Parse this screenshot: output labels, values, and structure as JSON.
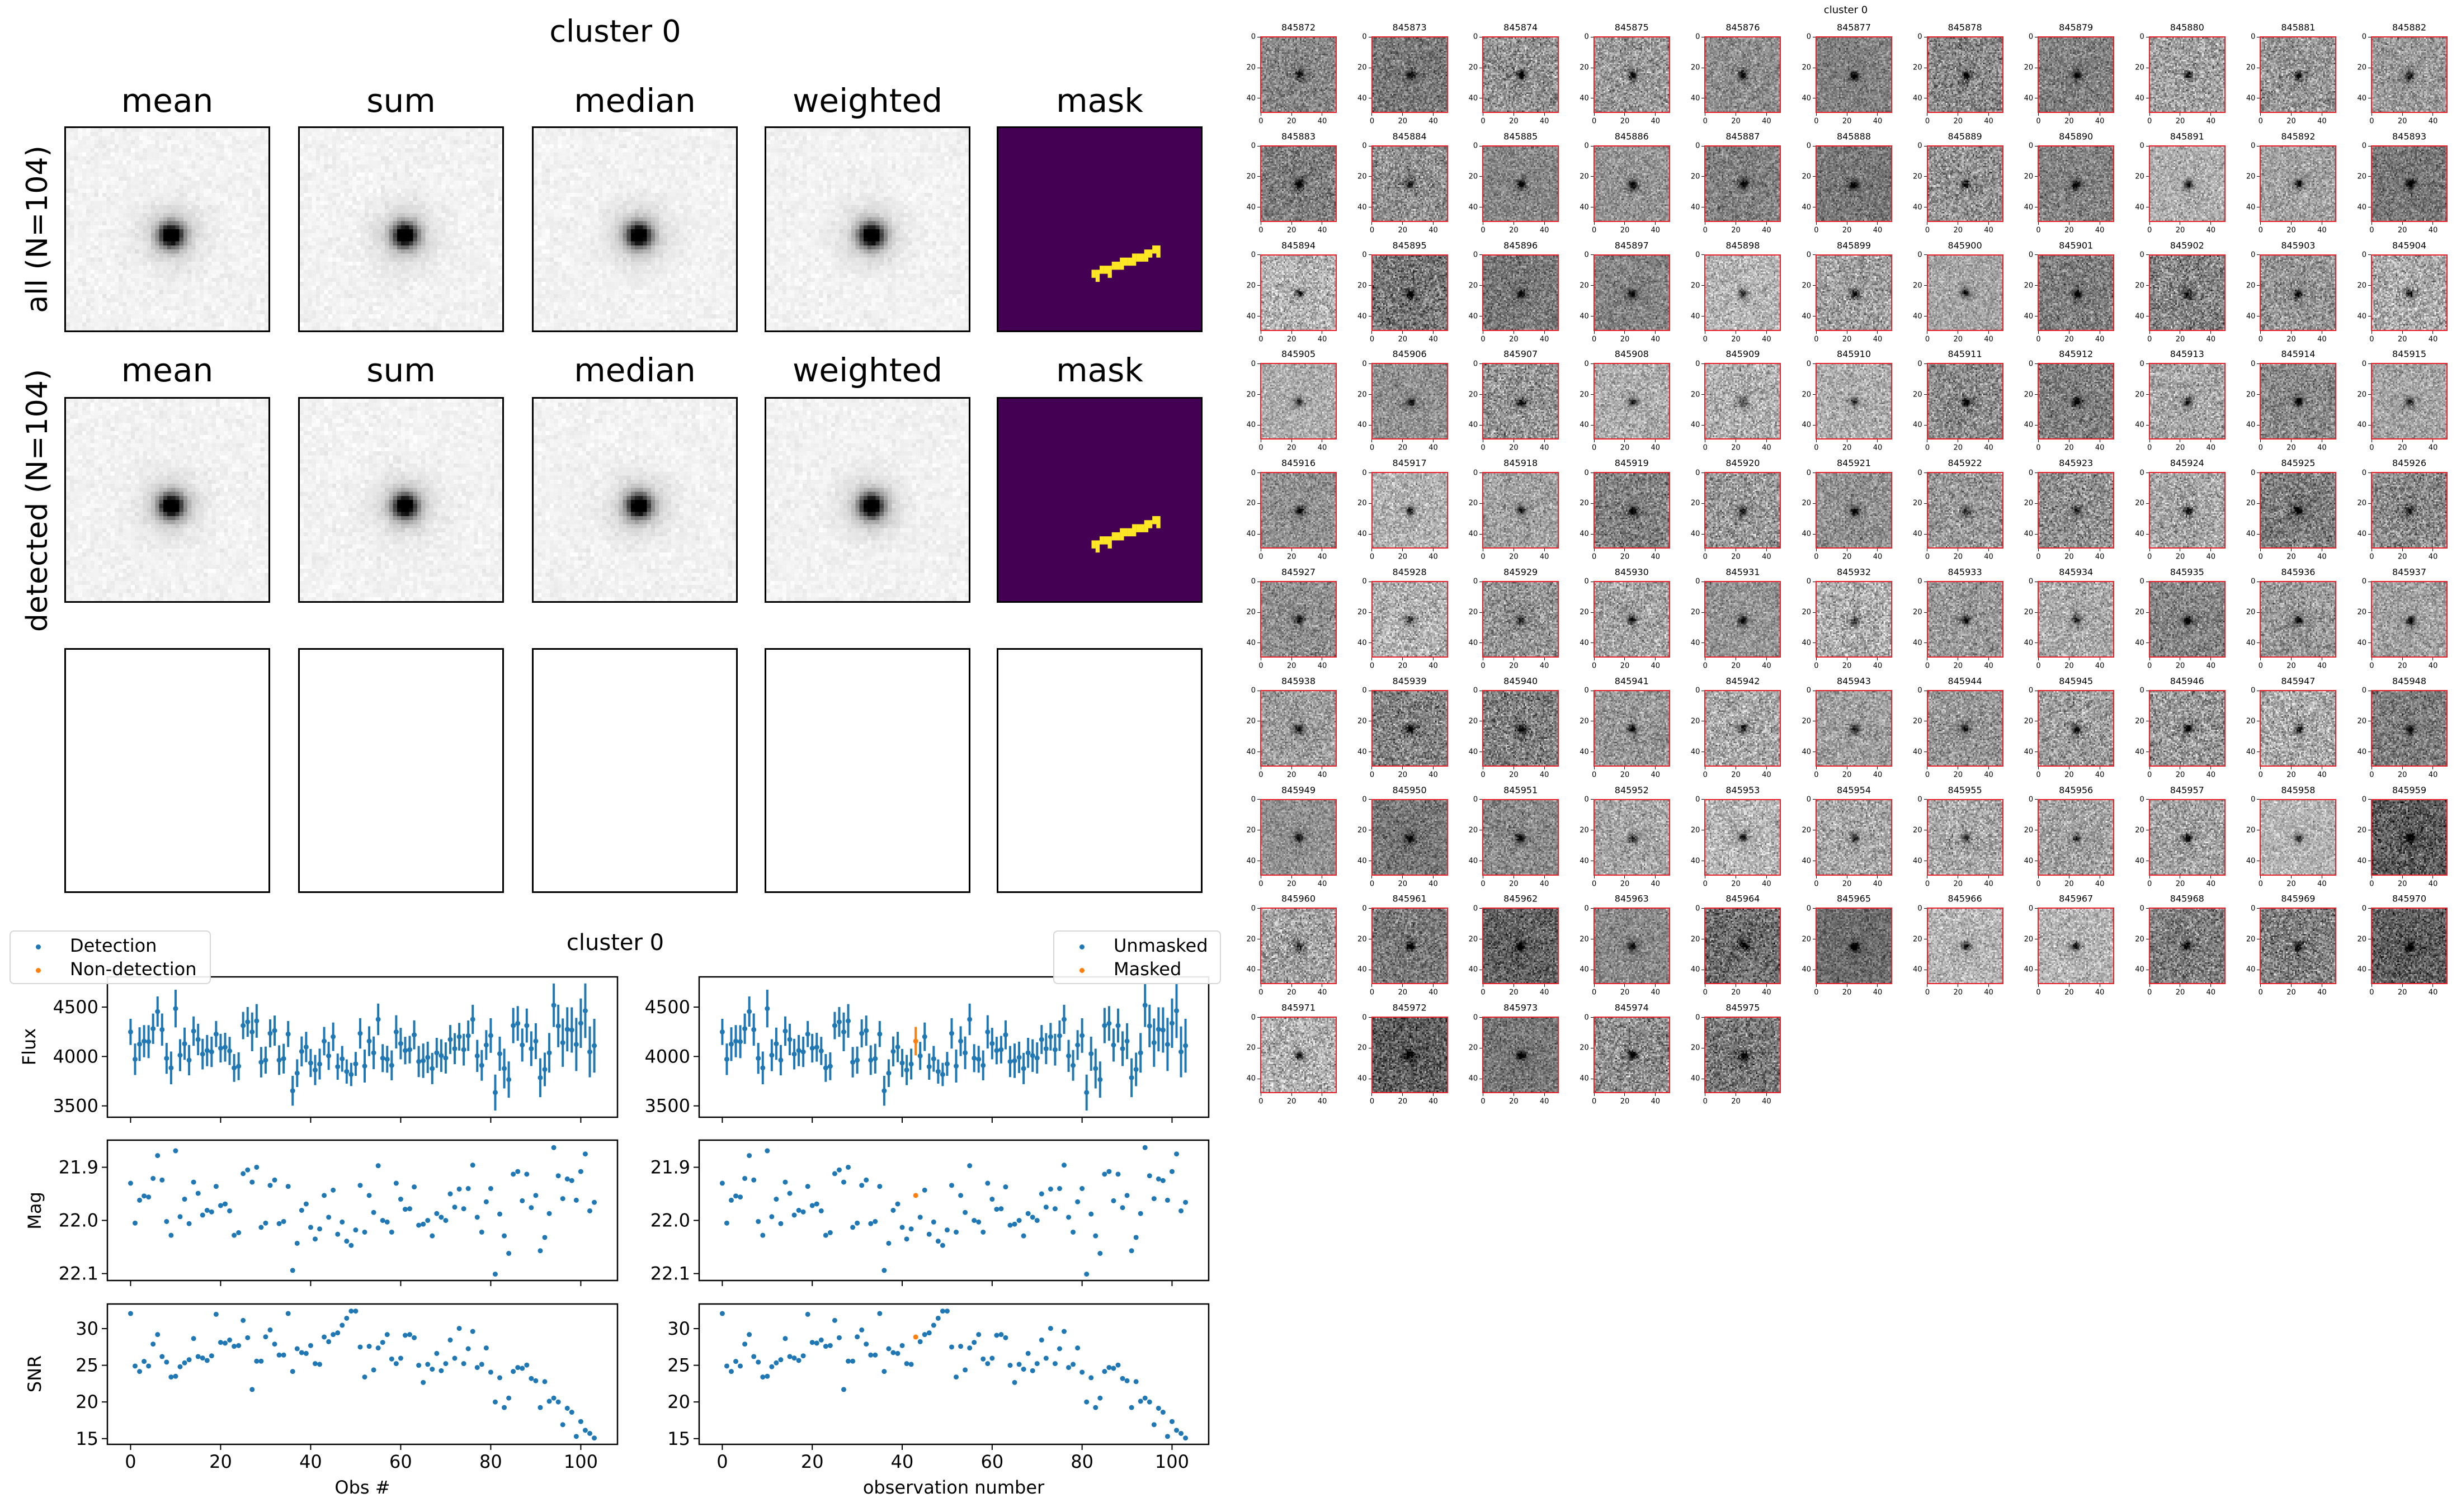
{
  "stacks": {
    "title": "cluster 0",
    "columns": [
      "mean",
      "sum",
      "median",
      "weighted",
      "mask"
    ],
    "rows": [
      {
        "label": "all (N=104)",
        "titles": [
          "mean",
          "sum",
          "median",
          "weighted",
          "mask"
        ],
        "content": "images"
      },
      {
        "label": "detected (N=104)",
        "titles": [
          "mean",
          "sum",
          "median",
          "weighted",
          "mask"
        ],
        "content": "images"
      },
      {
        "label": "",
        "titles": [],
        "content": "empty"
      }
    ],
    "colors": {
      "mask_background": "#440154",
      "mask_pixels": "#fde725"
    },
    "colormap": "gray_r"
  },
  "thumbnails": {
    "title": "cluster 0",
    "ids": [
      845872,
      845873,
      845874,
      845875,
      845876,
      845877,
      845878,
      845879,
      845880,
      845881,
      845882,
      845883,
      845884,
      845885,
      845886,
      845887,
      845888,
      845889,
      845890,
      845891,
      845892,
      845893,
      845894,
      845895,
      845896,
      845897,
      845898,
      845899,
      845900,
      845901,
      845902,
      845903,
      845904,
      845905,
      845906,
      845907,
      845908,
      845909,
      845910,
      845911,
      845912,
      845913,
      845914,
      845915,
      845916,
      845917,
      845918,
      845919,
      845920,
      845921,
      845922,
      845923,
      845924,
      845925,
      845926,
      845927,
      845928,
      845929,
      845930,
      845931,
      845932,
      845933,
      845934,
      845935,
      845936,
      845937,
      845938,
      845939,
      845940,
      845941,
      845942,
      845943,
      845944,
      845945,
      845946,
      845947,
      845948,
      845949,
      845950,
      845951,
      845952,
      845953,
      845954,
      845955,
      845956,
      845957,
      845958,
      845959,
      845960,
      845961,
      845962,
      845963,
      845964,
      845965,
      845966,
      845967,
      845968,
      845969,
      845970,
      845971,
      845972,
      845973,
      845974,
      845975
    ],
    "ticks": [
      "0",
      "20",
      "40"
    ],
    "border_color": "#e8202a",
    "colormap": "gray_r"
  },
  "chart_data": {
    "type": "scatter",
    "title": "cluster 0",
    "x": [
      0,
      1,
      2,
      3,
      4,
      5,
      6,
      7,
      8,
      9,
      10,
      11,
      12,
      13,
      14,
      15,
      16,
      17,
      18,
      19,
      20,
      21,
      22,
      23,
      24,
      25,
      26,
      27,
      28,
      29,
      30,
      31,
      32,
      33,
      34,
      35,
      36,
      37,
      38,
      39,
      40,
      41,
      42,
      43,
      44,
      45,
      46,
      47,
      48,
      49,
      50,
      51,
      52,
      53,
      54,
      55,
      56,
      57,
      58,
      59,
      60,
      61,
      62,
      63,
      64,
      65,
      66,
      67,
      68,
      69,
      70,
      71,
      72,
      73,
      74,
      75,
      76,
      77,
      78,
      79,
      80,
      81,
      82,
      83,
      84,
      85,
      86,
      87,
      88,
      89,
      90,
      91,
      92,
      93,
      94,
      95,
      96,
      97,
      98,
      99,
      100,
      101,
      102,
      103
    ],
    "flux": [
      4249,
      3972,
      4125,
      4155,
      4150,
      4281,
      4455,
      4272,
      3981,
      3884,
      4485,
      4013,
      4129,
      3963,
      4257,
      4172,
      4024,
      4060,
      4047,
      4227,
      4084,
      4094,
      4056,
      3884,
      3901,
      4313,
      4350,
      4249,
      4360,
      3942,
      3963,
      4234,
      4262,
      3963,
      3978,
      4227,
      3653,
      3831,
      4051,
      4096,
      3934,
      3863,
      3923,
      4155,
      4006,
      4200,
      3897,
      3976,
      3848,
      3818,
      3925,
      4234,
      3903,
      4155,
      4037,
      4376,
      3983,
      3972,
      3910,
      4249,
      4131,
      4060,
      4069,
      4219,
      3949,
      3957,
      3991,
      3878,
      4037,
      4009,
      3985,
      4172,
      4079,
      4200,
      4069,
      4210,
      4376,
      4006,
      3910,
      4116,
      4212,
      3635,
      4028,
      3878,
      3766,
      4313,
      4335,
      4116,
      4313,
      4079,
      4155,
      3785,
      3869,
      4037,
      4519,
      4309,
      4140,
      4275,
      4268,
      4122,
      4337,
      4463,
      4047,
      4109
    ],
    "mag": [
      21.93,
      22.005,
      21.962,
      21.954,
      21.956,
      21.921,
      21.878,
      21.924,
      22.002,
      22.028,
      21.869,
      21.993,
      21.96,
      22.006,
      21.928,
      21.949,
      21.99,
      21.981,
      21.984,
      21.936,
      21.972,
      21.969,
      21.982,
      22.028,
      22.023,
      21.912,
      21.905,
      21.928,
      21.9,
      22.013,
      22.005,
      21.934,
      21.924,
      22.006,
      22.002,
      21.936,
      22.094,
      22.043,
      21.981,
      21.969,
      22.013,
      22.035,
      22.016,
      21.953,
      21.994,
      21.943,
      22.026,
      22.003,
      22.039,
      22.047,
      22.018,
      21.934,
      22.022,
      21.953,
      21.985,
      21.897,
      22.0,
      22.003,
      22.022,
      21.93,
      21.96,
      21.979,
      21.978,
      21.937,
      22.009,
      22.007,
      22.0,
      22.029,
      21.987,
      21.994,
      22.0,
      21.95,
      21.975,
      21.941,
      21.978,
      21.94,
      21.896,
      21.994,
      22.022,
      21.965,
      21.94,
      22.101,
      21.988,
      22.029,
      22.062,
      21.913,
      21.908,
      21.963,
      21.913,
      21.976,
      21.953,
      22.057,
      22.032,
      21.987,
      21.863,
      21.916,
      21.959,
      21.922,
      21.925,
      21.962,
      21.908,
      21.875,
      21.982,
      21.966
    ],
    "snr": [
      32.06,
      24.9,
      24.16,
      25.53,
      24.9,
      27.89,
      29.19,
      26.19,
      25.43,
      23.4,
      23.5,
      24.8,
      25.33,
      25.76,
      28.65,
      26.19,
      25.99,
      25.66,
      26.29,
      31.95,
      28.12,
      28.02,
      28.45,
      27.59,
      27.69,
      31.12,
      28.76,
      21.7,
      25.56,
      25.56,
      28.88,
      29.82,
      27.89,
      26.4,
      26.4,
      32.06,
      24.16,
      27.26,
      26.73,
      26.62,
      27.69,
      25.23,
      25.13,
      28.86,
      28.22,
      29.19,
      29.42,
      30.46,
      31.42,
      32.39,
      32.39,
      27.49,
      23.4,
      27.59,
      24.37,
      27.36,
      28.12,
      29.19,
      25.86,
      25.23,
      25.96,
      29.09,
      29.19,
      28.76,
      25.0,
      22.66,
      25.13,
      24.47,
      26.62,
      24.26,
      25.23,
      28.45,
      25.96,
      30.03,
      25.23,
      27.26,
      29.62,
      24.7,
      25.13,
      27.36,
      24.06,
      20.0,
      23.3,
      19.24,
      20.53,
      24.16,
      24.7,
      24.59,
      25.03,
      23.2,
      22.89,
      19.24,
      22.77,
      20.1,
      20.53,
      20.0,
      16.9,
      19.14,
      18.6,
      15.3,
      17.33,
      16.14,
      15.71,
      15.08
    ],
    "flux_errorbars": "flux / snr",
    "masked_indices": [
      43
    ],
    "non_detection_indices": [],
    "xlim": [
      -5.15,
      108.15
    ],
    "xticks": [
      0,
      20,
      40,
      60,
      80,
      100
    ],
    "xtick_labels": [
      "0",
      "20",
      "40",
      "60",
      "80",
      "100"
    ],
    "rows": [
      {
        "key": "flux",
        "ylabel": "Flux",
        "ylim": [
          3385,
          4806
        ],
        "yticks": [
          3500,
          4000,
          4500
        ],
        "ytick_labels": [
          "3500",
          "4000",
          "4500"
        ],
        "errorbars": true
      },
      {
        "key": "mag",
        "ylabel": "Mag",
        "ylim": [
          22.113,
          21.849
        ],
        "inverted": true,
        "yticks": [
          21.9,
          22.0,
          22.1
        ],
        "ytick_labels": [
          "21.9",
          "22.0",
          "22.1"
        ],
        "errorbars": false
      },
      {
        "key": "snr",
        "ylabel": "SNR",
        "ylim": [
          14.22,
          33.36
        ],
        "yticks": [
          15,
          20,
          25,
          30
        ],
        "ytick_labels": [
          "15",
          "20",
          "25",
          "30"
        ],
        "errorbars": false
      }
    ],
    "columns": [
      {
        "xlabel": "Obs #",
        "highlight": "non_detection_indices",
        "legend": [
          {
            "label": "Detection",
            "color": "#1f77b4"
          },
          {
            "label": "Non-detection",
            "color": "#ff7f0e"
          }
        ],
        "legend_position": "upper-left"
      },
      {
        "xlabel": "observation number",
        "highlight": "masked_indices",
        "legend": [
          {
            "label": "Unmasked",
            "color": "#1f77b4"
          },
          {
            "label": "Masked",
            "color": "#ff7f0e"
          }
        ],
        "legend_position": "upper-right"
      }
    ],
    "colors": {
      "primary": "#1f77b4",
      "highlight": "#ff7f0e"
    },
    "grid": false
  }
}
